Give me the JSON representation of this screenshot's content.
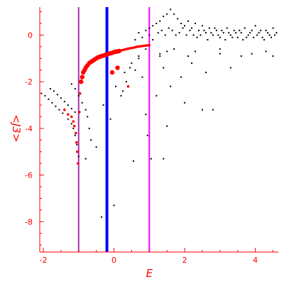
{
  "chart_data": {
    "type": "scatter",
    "title": "",
    "xlabel": "E",
    "ylabel": "<J3>",
    "xlim": [
      -2.1,
      4.65
    ],
    "ylim": [
      -9.3,
      1.2
    ],
    "xticks": [
      -2,
      0,
      2,
      4
    ],
    "yticks": [
      0,
      -2,
      -4,
      -6,
      -8
    ],
    "grid": false,
    "axis_color": "#ff0000",
    "vertical_lines": [
      {
        "x": -1.0,
        "color": "#aa33aa"
      },
      {
        "x": -0.2,
        "color": "#0000ff"
      },
      {
        "x": 1.0,
        "color": "#ff00ff"
      }
    ],
    "series": [
      {
        "marker_color": "#ff0000",
        "points": [
          [
            -1.2,
            -3.5
          ],
          [
            -1.15,
            -3.7
          ],
          [
            -1.12,
            -3.9
          ],
          [
            -1.08,
            -4.2
          ],
          [
            -1.06,
            -4.6
          ],
          [
            -1.04,
            -5.0
          ],
          [
            -1.02,
            -5.5
          ],
          [
            -0.98,
            -3.3
          ],
          [
            -0.96,
            -2.5
          ],
          [
            -0.93,
            -2.0
          ],
          [
            -0.9,
            -1.8
          ],
          [
            -0.87,
            -1.6
          ],
          [
            -0.83,
            -1.5
          ],
          [
            -0.8,
            -1.4
          ],
          [
            -0.75,
            -1.3
          ],
          [
            -0.7,
            -1.2
          ],
          [
            -0.65,
            -1.15
          ],
          [
            -0.6,
            -1.1
          ],
          [
            -0.55,
            -1.05
          ],
          [
            -0.5,
            -1.0
          ],
          [
            -0.45,
            -0.95
          ],
          [
            -0.4,
            -0.93
          ],
          [
            -0.35,
            -0.9
          ],
          [
            -0.3,
            -0.88
          ],
          [
            -0.25,
            -0.85
          ],
          [
            -0.2,
            -0.83
          ],
          [
            -0.15,
            -0.8
          ],
          [
            -0.1,
            -0.78
          ],
          [
            -0.05,
            -0.76
          ],
          [
            0.0,
            -0.73
          ],
          [
            0.05,
            -0.71
          ],
          [
            0.1,
            -0.7
          ],
          [
            0.15,
            -0.68
          ],
          [
            0.2,
            -0.66
          ],
          [
            0.25,
            -0.64
          ],
          [
            0.3,
            -0.62
          ],
          [
            0.35,
            -0.6
          ],
          [
            0.4,
            -0.58
          ],
          [
            0.45,
            -0.57
          ],
          [
            0.5,
            -0.55
          ],
          [
            0.55,
            -0.54
          ],
          [
            0.6,
            -0.52
          ],
          [
            0.65,
            -0.5
          ],
          [
            0.7,
            -0.49
          ],
          [
            0.75,
            -0.48
          ],
          [
            0.8,
            -0.47
          ],
          [
            0.85,
            -0.46
          ],
          [
            0.9,
            -0.45
          ],
          [
            0.95,
            -0.44
          ],
          [
            1.0,
            -0.43
          ],
          [
            0.4,
            -2.2
          ],
          [
            0.1,
            -1.4
          ],
          [
            -0.05,
            -1.6
          ],
          [
            -1.4,
            -3.2
          ],
          [
            -1.3,
            -3.4
          ]
        ]
      },
      {
        "marker_color": "#000000",
        "points": [
          [
            -2.05,
            -2.5
          ],
          [
            -1.95,
            -2.6
          ],
          [
            -1.85,
            -2.75
          ],
          [
            -1.75,
            -2.9
          ],
          [
            -1.65,
            -3.05
          ],
          [
            -1.55,
            -3.2
          ],
          [
            -1.45,
            -3.35
          ],
          [
            -1.3,
            -3.6
          ],
          [
            -1.2,
            -3.8
          ],
          [
            -1.15,
            -4.0
          ],
          [
            -1.1,
            -4.3
          ],
          [
            -1.05,
            -4.7
          ],
          [
            -1.0,
            -5.2
          ],
          [
            -1.8,
            -2.3
          ],
          [
            -1.7,
            -2.4
          ],
          [
            -1.6,
            -2.55
          ],
          [
            -1.5,
            -2.7
          ],
          [
            -1.4,
            -2.85
          ],
          [
            -1.3,
            -3.0
          ],
          [
            -1.2,
            -3.15
          ],
          [
            -1.1,
            -3.3
          ],
          [
            -1.2,
            -2.1
          ],
          [
            -1.1,
            -2.3
          ],
          [
            -1.0,
            -2.6
          ],
          [
            -0.9,
            -2.9
          ],
          [
            -0.8,
            -3.2
          ],
          [
            -0.75,
            -3.5
          ],
          [
            -0.7,
            -4.0
          ],
          [
            -0.65,
            -4.5
          ],
          [
            -0.8,
            -5.3
          ],
          [
            -0.5,
            -4.8
          ],
          [
            -0.3,
            -3.0
          ],
          [
            -0.35,
            -7.8
          ],
          [
            -0.1,
            -3.6
          ],
          [
            0.05,
            -2.2
          ],
          [
            0.0,
            -7.3
          ],
          [
            0.2,
            -2.6
          ],
          [
            0.3,
            -1.6
          ],
          [
            0.35,
            -2.0
          ],
          [
            0.5,
            -1.2
          ],
          [
            0.6,
            -1.5
          ],
          [
            0.7,
            -1.0
          ],
          [
            0.8,
            -1.8
          ],
          [
            0.9,
            -3.4
          ],
          [
            1.2,
            -2.6
          ],
          [
            1.3,
            -0.9
          ],
          [
            1.4,
            -1.4
          ],
          [
            1.5,
            -3.9
          ],
          [
            1.6,
            -2.2
          ],
          [
            1.7,
            -0.6
          ],
          [
            1.9,
            -1.8
          ],
          [
            2.0,
            -2.9
          ],
          [
            2.2,
            -1.2
          ],
          [
            2.3,
            -0.7
          ],
          [
            2.5,
            -3.2
          ],
          [
            2.6,
            -1.6
          ],
          [
            2.8,
            -3.2
          ],
          [
            3.0,
            -0.6
          ],
          [
            3.3,
            -1.4
          ],
          [
            3.6,
            -0.9
          ],
          [
            3.9,
            -0.8
          ],
          [
            4.3,
            -0.7
          ],
          [
            4.5,
            -0.9
          ],
          [
            0.95,
            -4.3
          ],
          [
            1.05,
            -5.3
          ],
          [
            1.4,
            -5.3
          ],
          [
            0.55,
            -5.4
          ],
          [
            0.6,
            -0.2
          ],
          [
            0.7,
            0.1
          ],
          [
            0.8,
            -0.1
          ],
          [
            0.9,
            0.2
          ],
          [
            1.0,
            0.3
          ],
          [
            1.1,
            0.4
          ],
          [
            1.2,
            0.5
          ],
          [
            1.3,
            0.6
          ],
          [
            1.4,
            0.8
          ],
          [
            1.5,
            0.9
          ],
          [
            1.6,
            1.1
          ],
          [
            1.7,
            0.9
          ],
          [
            1.8,
            0.7
          ],
          [
            1.9,
            0.5
          ],
          [
            2.0,
            0.4
          ],
          [
            2.1,
            0.6
          ],
          [
            2.2,
            0.3
          ],
          [
            2.3,
            0.5
          ],
          [
            2.4,
            0.2
          ],
          [
            2.5,
            0.4
          ],
          [
            2.6,
            0.1
          ],
          [
            2.7,
            0.3
          ],
          [
            2.8,
            0.0
          ],
          [
            2.9,
            0.2
          ],
          [
            3.0,
            -0.1
          ],
          [
            3.1,
            0.1
          ],
          [
            3.2,
            0.3
          ],
          [
            3.3,
            0.0
          ],
          [
            3.4,
            0.2
          ],
          [
            3.5,
            -0.1
          ],
          [
            3.6,
            0.1
          ],
          [
            3.7,
            0.3
          ],
          [
            3.8,
            0.0
          ],
          [
            3.9,
            0.2
          ],
          [
            4.0,
            0.4
          ],
          [
            4.1,
            0.1
          ],
          [
            4.2,
            -0.1
          ],
          [
            4.3,
            0.2
          ],
          [
            4.4,
            0.0
          ],
          [
            4.5,
            0.3
          ],
          [
            4.6,
            0.1
          ],
          [
            1.0,
            0.0
          ],
          [
            1.1,
            -0.2
          ],
          [
            1.25,
            0.1
          ],
          [
            1.35,
            0.2
          ],
          [
            1.45,
            0.0
          ],
          [
            1.55,
            0.3
          ],
          [
            1.65,
            0.2
          ],
          [
            1.75,
            0.0
          ],
          [
            1.85,
            0.1
          ],
          [
            1.95,
            0.3
          ],
          [
            2.05,
            0.0
          ],
          [
            2.15,
            0.2
          ],
          [
            2.25,
            0.0
          ],
          [
            2.35,
            -0.1
          ],
          [
            2.45,
            0.0
          ],
          [
            2.55,
            0.2
          ],
          [
            2.65,
            -0.2
          ],
          [
            2.75,
            0.1
          ],
          [
            2.85,
            0.3
          ],
          [
            2.95,
            0.0
          ],
          [
            3.05,
            0.2
          ],
          [
            3.15,
            -0.2
          ],
          [
            3.25,
            0.1
          ],
          [
            3.35,
            -0.1
          ],
          [
            3.45,
            0.1
          ],
          [
            3.55,
            0.2
          ],
          [
            3.65,
            -0.2
          ],
          [
            3.75,
            -0.1
          ],
          [
            3.85,
            0.1
          ],
          [
            3.95,
            -0.1
          ],
          [
            4.05,
            0.0
          ],
          [
            4.15,
            0.2
          ],
          [
            4.25,
            -0.2
          ],
          [
            4.35,
            0.1
          ],
          [
            4.45,
            -0.1
          ],
          [
            4.55,
            0.0
          ],
          [
            3.0,
            -0.8
          ],
          [
            2.1,
            -0.9
          ],
          [
            1.5,
            -0.7
          ],
          [
            1.3,
            -0.8
          ],
          [
            0.45,
            -1.4
          ],
          [
            0.25,
            -2.4
          ],
          [
            0.7,
            -0.9
          ],
          [
            0.9,
            -0.6
          ]
        ]
      }
    ]
  }
}
